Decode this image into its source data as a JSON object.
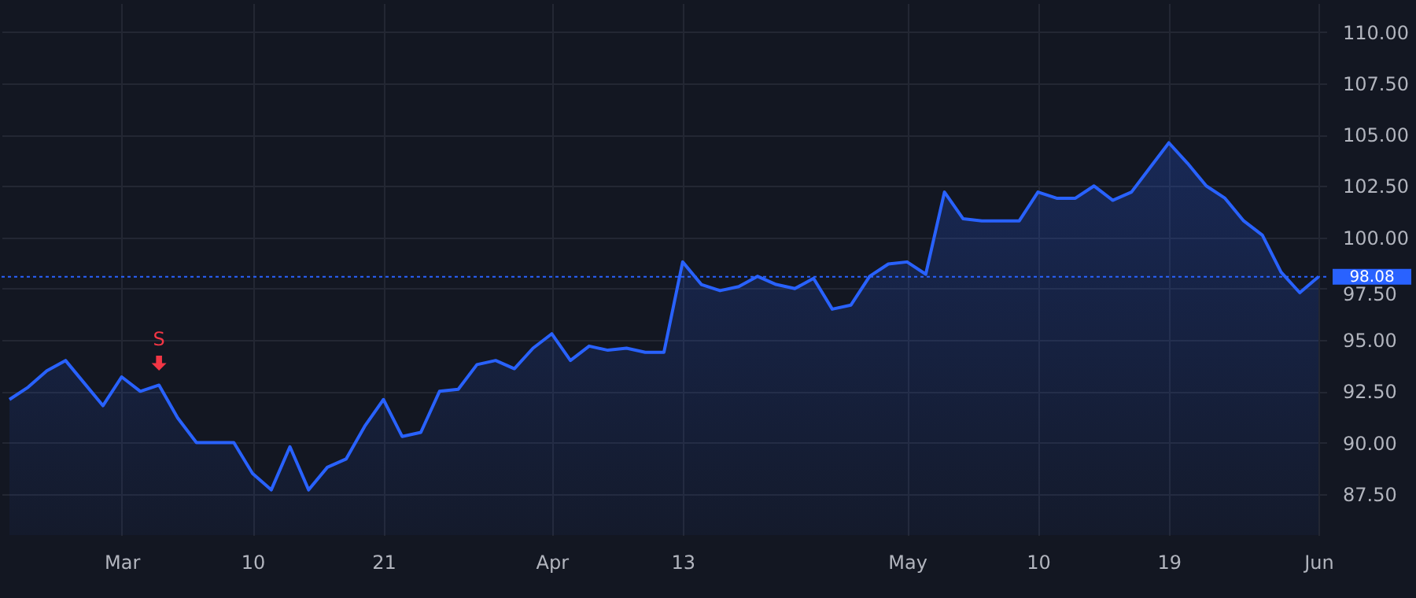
{
  "chart_data": {
    "type": "area",
    "categories": [
      null,
      null,
      null,
      null,
      null,
      null,
      "Mar",
      null,
      null,
      null,
      null,
      null,
      null,
      "10",
      null,
      null,
      null,
      null,
      null,
      null,
      "21",
      null,
      null,
      null,
      null,
      null,
      null,
      null,
      null,
      "Apr",
      null,
      null,
      null,
      null,
      null,
      null,
      "13",
      null,
      null,
      null,
      null,
      null,
      null,
      null,
      null,
      null,
      null,
      null,
      "May",
      null,
      null,
      null,
      null,
      null,
      null,
      "10",
      null,
      null,
      null,
      null,
      null,
      null,
      "19",
      null,
      null,
      null,
      null,
      null,
      null,
      null,
      "Jun"
    ],
    "series": [
      {
        "color": "#2962ff",
        "values": [
          92.1,
          92.7,
          93.5,
          94.0,
          92.9,
          91.8,
          93.2,
          92.5,
          92.8,
          91.2,
          90.0,
          90.0,
          90.0,
          88.5,
          87.7,
          89.8,
          87.7,
          88.8,
          89.2,
          90.8,
          92.1,
          90.3,
          90.5,
          92.5,
          92.6,
          93.8,
          94.0,
          93.6,
          94.6,
          95.3,
          94.0,
          94.7,
          94.5,
          94.6,
          94.4,
          94.4,
          98.8,
          97.7,
          97.4,
          97.6,
          98.1,
          97.7,
          97.5,
          98.0,
          96.5,
          96.7,
          98.1,
          98.7,
          98.8,
          98.2,
          102.2,
          100.9,
          100.8,
          100.8,
          100.8,
          102.2,
          101.9,
          101.9,
          102.5,
          101.8,
          102.2,
          103.4,
          104.6,
          103.6,
          102.5,
          101.9,
          100.8,
          100.1,
          98.3,
          97.3,
          98.08
        ]
      }
    ],
    "ylim": [
      85.5,
      111.4
    ],
    "yticks": [
      {
        "value": 87.5,
        "label": "87.50"
      },
      {
        "value": 90,
        "label": "90.00"
      },
      {
        "value": 92.5,
        "label": "92.50"
      },
      {
        "value": 95,
        "label": "95.00"
      },
      {
        "value": 97.5,
        "label": "97.50"
      },
      {
        "value": 100,
        "label": "100.00"
      },
      {
        "value": 102.5,
        "label": "102.50"
      },
      {
        "value": 105,
        "label": "105.00"
      },
      {
        "value": 107.5,
        "label": "107.50"
      },
      {
        "value": 110,
        "label": "110.00"
      }
    ],
    "grid": true,
    "ref_lines": [
      {
        "axis": "y",
        "value": 98.08,
        "label": "98.08",
        "color": "#2962ff",
        "line_style": "dotted"
      }
    ],
    "annotations": [
      {
        "text": "S",
        "y": 92.8
      }
    ]
  }
}
